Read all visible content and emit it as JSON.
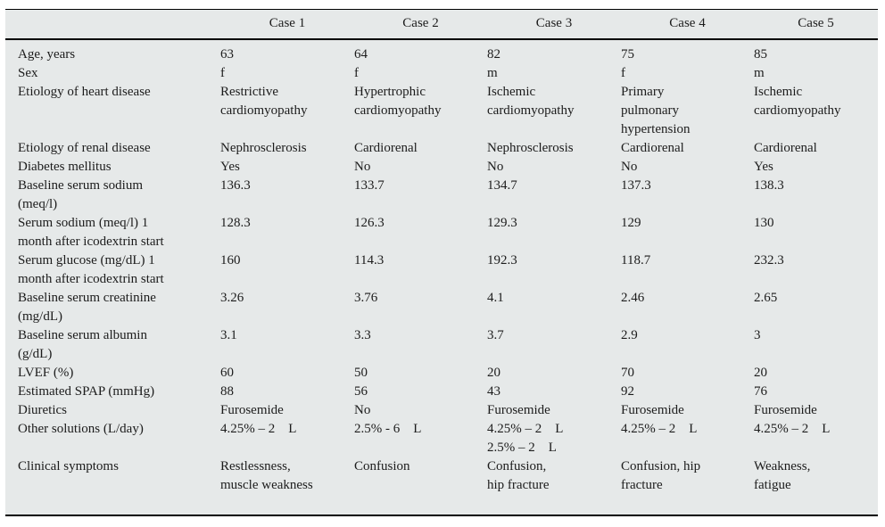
{
  "colors": {
    "panel_background": "#e6e9e9",
    "rule": "#000000",
    "text": "#1c1c1c",
    "page_background": "#ffffff"
  },
  "table": {
    "headers": [
      "",
      "Case 1",
      "Case 2",
      "Case 3",
      "Case 4",
      "Case 5"
    ],
    "rows": [
      {
        "label": "Age, years",
        "values": [
          "63",
          "64",
          "82",
          "75",
          "85"
        ]
      },
      {
        "label": "Sex",
        "values": [
          "f",
          "f",
          "m",
          "f",
          "m"
        ]
      },
      {
        "label": "Etiology of heart disease",
        "values": [
          "Restrictive\ncardiomyopathy",
          "Hypertrophic\ncardiomyopathy",
          "Ischemic\ncardiomyopathy",
          "Primary\npulmonary\nhypertension",
          "Ischemic\ncardiomyopathy"
        ]
      },
      {
        "label": "Etiology of renal disease",
        "values": [
          "Nephrosclerosis",
          "Cardiorenal",
          "Nephrosclerosis",
          "Cardiorenal",
          "Cardiorenal"
        ]
      },
      {
        "label": "Diabetes mellitus",
        "values": [
          "Yes",
          "No",
          "No",
          "No",
          "Yes"
        ]
      },
      {
        "label": "Baseline serum sodium\n(meq/l)",
        "values": [
          "136.3",
          "133.7",
          "134.7",
          "137.3",
          "138.3"
        ]
      },
      {
        "label": "Serum sodium (meq/l) 1\nmonth after icodextrin start",
        "values": [
          "128.3",
          "126.3",
          "129.3",
          "129",
          "130"
        ]
      },
      {
        "label": "Serum glucose (mg/dL) 1\nmonth after icodextrin start",
        "values": [
          "160",
          "114.3",
          "192.3",
          "118.7",
          "232.3"
        ]
      },
      {
        "label": "Baseline serum creatinine\n(mg/dL)",
        "values": [
          "3.26",
          "3.76",
          "4.1",
          "2.46",
          "2.65"
        ]
      },
      {
        "label": "Baseline serum albumin\n(g/dL)",
        "values": [
          "3.1",
          "3.3",
          "3.7",
          "2.9",
          "3"
        ]
      },
      {
        "label": "LVEF (%)",
        "values": [
          "60",
          "50",
          "20",
          "70",
          "20"
        ]
      },
      {
        "label": "Estimated SPAP (mmHg)",
        "values": [
          "88",
          "56",
          "43",
          "92",
          "76"
        ]
      },
      {
        "label": "Diuretics",
        "values": [
          "Furosemide",
          "No",
          "Furosemide",
          "Furosemide",
          "Furosemide"
        ]
      },
      {
        "label": "Other solutions (L/day)",
        "values": [
          "4.25% – 2    L",
          "2.5% - 6    L",
          "4.25% – 2    L\n2.5% – 2    L",
          "4.25% – 2    L",
          "4.25% – 2    L"
        ]
      },
      {
        "label": "Clinical symptoms",
        "values": [
          "Restlessness,\nmuscle weakness",
          "Confusion",
          "Confusion,\nhip fracture",
          "Confusion, hip\nfracture",
          "Weakness,\nfatigue"
        ]
      }
    ]
  }
}
